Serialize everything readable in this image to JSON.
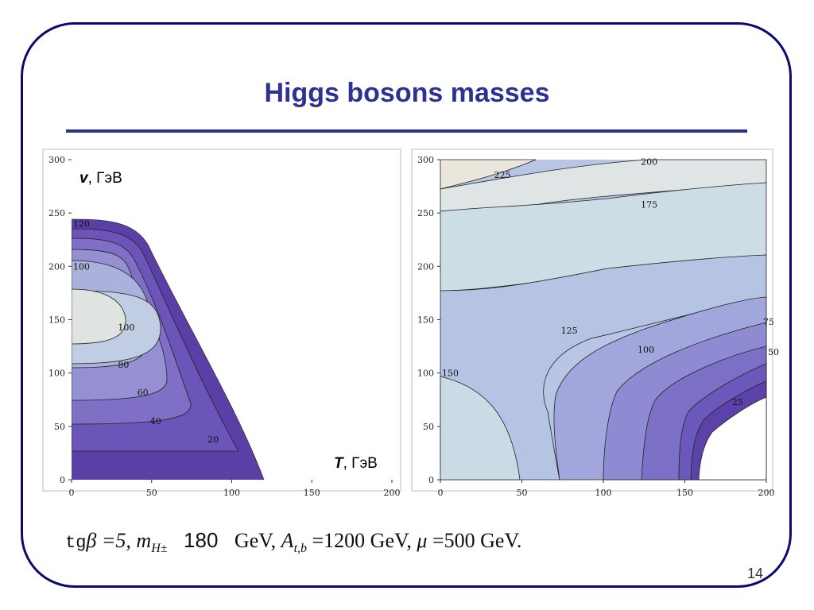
{
  "slide": {
    "title": "Higgs bosons masses",
    "page_number": "14"
  },
  "formula": {
    "tg": "tg",
    "beta_eq": "β =5,",
    "m_label": "m",
    "m_sub": "H±",
    "m_value": "180",
    "gev1": "GeV,",
    "a_label": "A",
    "a_sub": "t,b",
    "a_value": "=1200 GeV,",
    "mu_label": "μ",
    "mu_value": "=500 GeV."
  },
  "colors": {
    "frame": "#0b0b6e",
    "title": "#2e3192",
    "contour_dark": "#5a3fa6",
    "contour_light": "#e6e8df"
  },
  "chart_data": [
    {
      "type": "contour",
      "axis_label_y_var": "v",
      "axis_label_y_unit": ", ГэВ",
      "axis_label_x_var": "T",
      "axis_label_x_unit": ", ГэВ",
      "xlim": [
        0,
        200
      ],
      "ylim": [
        0,
        300
      ],
      "x_ticks": [
        0,
        50,
        100,
        150,
        200
      ],
      "y_ticks": [
        0,
        50,
        100,
        150,
        200,
        250,
        300
      ],
      "contour_labels": [
        {
          "text": "120",
          "x": 0,
          "y": 240
        },
        {
          "text": "100",
          "x": 0,
          "y": 200
        },
        {
          "text": "100",
          "x": 28,
          "y": 143
        },
        {
          "text": "80",
          "x": 28,
          "y": 108
        },
        {
          "text": "60",
          "x": 40,
          "y": 82
        },
        {
          "text": "40",
          "x": 48,
          "y": 55
        },
        {
          "text": "20",
          "x": 84,
          "y": 38
        }
      ]
    },
    {
      "type": "contour",
      "xlim": [
        0,
        200
      ],
      "ylim": [
        0,
        300
      ],
      "x_ticks": [
        0,
        50,
        100,
        150,
        200
      ],
      "y_ticks": [
        0,
        50,
        100,
        150,
        200,
        250,
        300
      ],
      "contour_labels": [
        {
          "text": "225",
          "x": 32,
          "y": 286
        },
        {
          "text": "200",
          "x": 122,
          "y": 298
        },
        {
          "text": "175",
          "x": 122,
          "y": 258
        },
        {
          "text": "125",
          "x": 73,
          "y": 140
        },
        {
          "text": "100",
          "x": 120,
          "y": 122
        },
        {
          "text": "75",
          "x": 197,
          "y": 148
        },
        {
          "text": "50",
          "x": 200,
          "y": 120
        },
        {
          "text": "25",
          "x": 178,
          "y": 73
        },
        {
          "text": "150",
          "x": 0,
          "y": 100
        }
      ]
    }
  ]
}
